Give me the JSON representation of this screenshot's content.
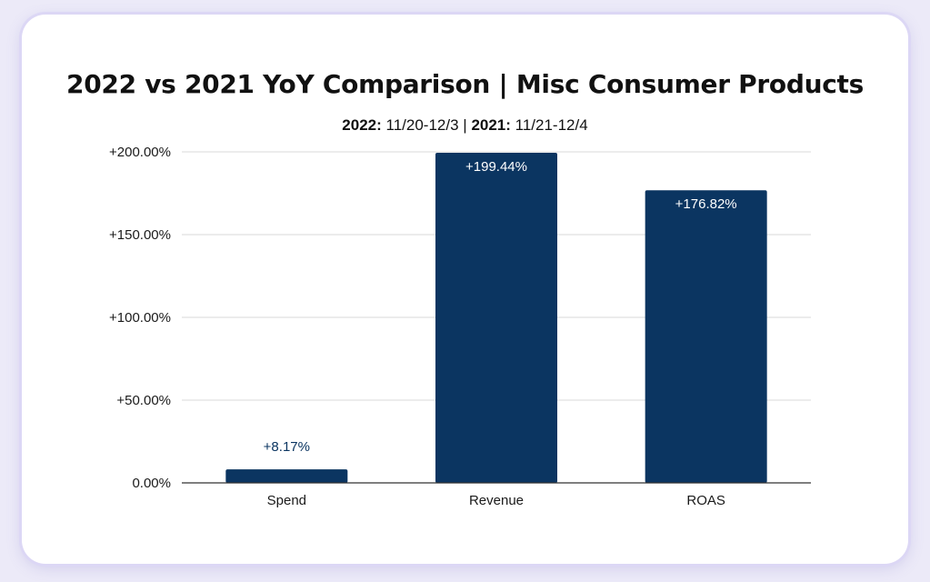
{
  "chart_data": {
    "type": "bar",
    "title": "2022 vs 2021 YoY Comparison | Misc Consumer Products",
    "subtitle": {
      "label_2022": "2022:",
      "range_2022": "11/20-12/3",
      "separator": "|",
      "label_2021": "2021:",
      "range_2021": "11/21-12/4"
    },
    "categories": [
      "Spend",
      "Revenue",
      "ROAS"
    ],
    "values": [
      8.17,
      199.44,
      176.82
    ],
    "data_labels": [
      "+8.17%",
      "+199.44%",
      "+176.82%"
    ],
    "y_ticks": [
      0,
      50,
      100,
      150,
      200
    ],
    "y_tick_labels": [
      "0.00%",
      "+50.00%",
      "+100.00%",
      "+150.00%",
      "+200.00%"
    ],
    "ylim": [
      0,
      200
    ],
    "grid": true,
    "legend": "none",
    "bar_color": "#0b3561",
    "label_inside_color": "#ffffff",
    "label_outside_color": "#0b3561",
    "grid_color": "#d9d9d9",
    "axis_color": "#333333"
  }
}
